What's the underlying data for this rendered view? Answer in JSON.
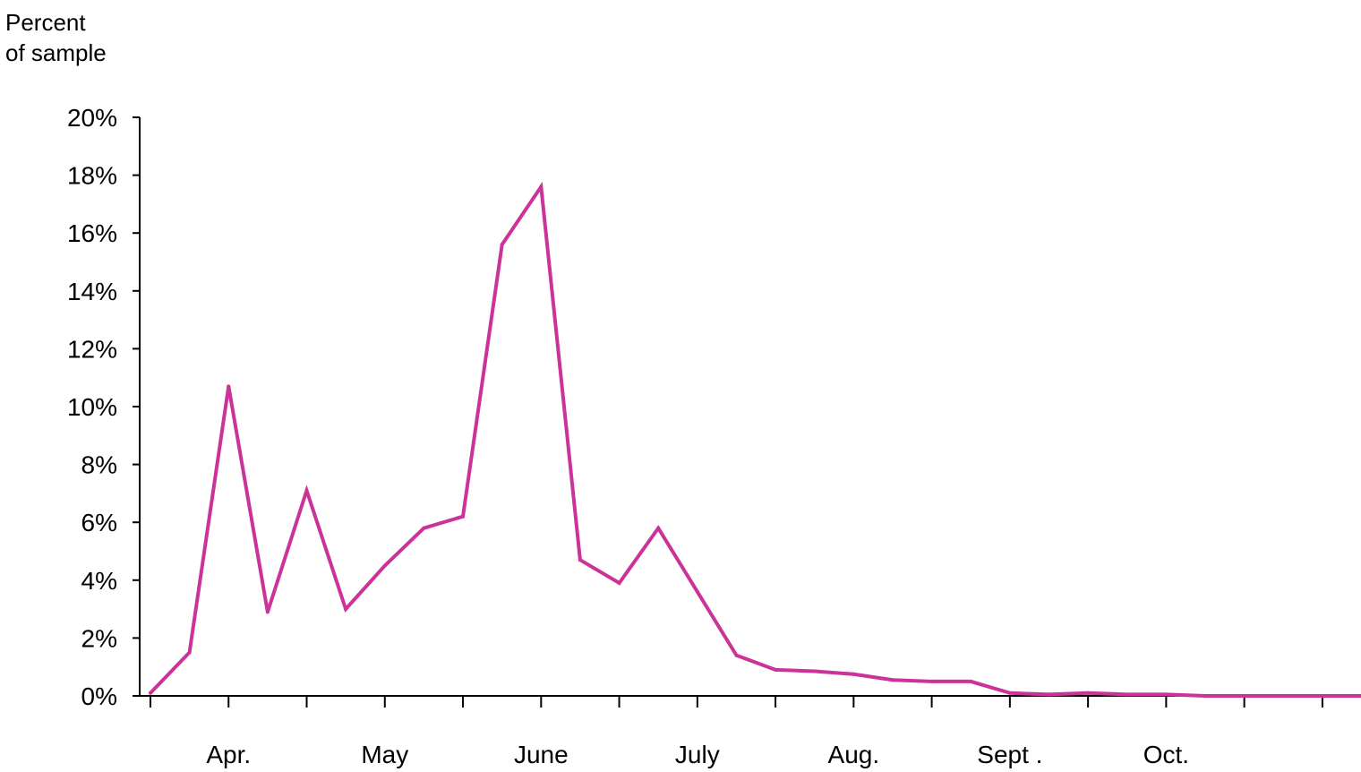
{
  "chart_data": {
    "type": "line",
    "ylabel_line1": "Percent",
    "ylabel_line2": "of sample",
    "ylim": [
      0,
      20
    ],
    "yticks": [
      0,
      2,
      4,
      6,
      8,
      10,
      12,
      14,
      16,
      18,
      20
    ],
    "ytick_labels": [
      "0%",
      "2%",
      "4%",
      "6%",
      "8%",
      "10%",
      "12%",
      "14%",
      "16%",
      "18%",
      "20%"
    ],
    "x_month_labels": [
      "Apr.",
      "May",
      "June",
      "July",
      "Aug.",
      "Sept .",
      "Oct."
    ],
    "grid": false,
    "color": "#cc3399",
    "series": [
      {
        "values": [
          0.1,
          1.5,
          10.7,
          2.9,
          7.1,
          3.0,
          4.5,
          5.8,
          6.2,
          15.6,
          17.6,
          4.7,
          3.9,
          5.8,
          3.6,
          1.4,
          0.9,
          0.85,
          0.75,
          0.55,
          0.5,
          0.5,
          0.1,
          0.05,
          0.1,
          0.05,
          0.05,
          0.0,
          0.0,
          0.0,
          0.0,
          0.0
        ]
      }
    ]
  }
}
